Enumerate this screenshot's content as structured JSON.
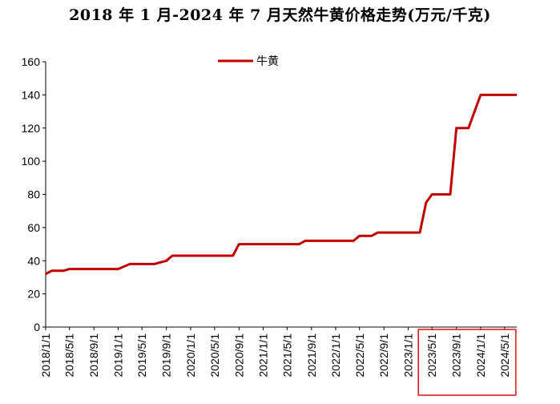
{
  "title": "2018 年 1 月-2024 年 7 月天然牛黄价格走势(万元/千克)",
  "chart_data": {
    "type": "line",
    "title": "2018 年 1 月-2024 年 7 月天然牛黄价格走势(万元/千克)",
    "xlabel": "",
    "ylabel": "",
    "ylim": [
      0,
      160
    ],
    "yticks": [
      0,
      20,
      40,
      60,
      80,
      100,
      120,
      140,
      160
    ],
    "xticks": [
      "2018/1/1",
      "2018/5/1",
      "2018/9/1",
      "2019/1/1",
      "2019/5/1",
      "2019/9/1",
      "2020/1/1",
      "2020/5/1",
      "2020/9/1",
      "2021/1/1",
      "2021/5/1",
      "2021/9/1",
      "2022/1/1",
      "2022/5/1",
      "2022/9/1",
      "2023/1/1",
      "2023/5/1",
      "2023/9/1",
      "2024/1/1",
      "2024/5/1"
    ],
    "grid": false,
    "legend": "top-center",
    "highlight": [
      "2023/5/1",
      "2024/5/1"
    ],
    "colors": {
      "series": "#c00000",
      "highlight": "#e02020"
    },
    "series": [
      {
        "name": "牛黄",
        "points": [
          [
            "2018-01-01",
            32
          ],
          [
            "2018-02-01",
            34
          ],
          [
            "2018-04-01",
            34
          ],
          [
            "2018-05-01",
            35
          ],
          [
            "2019-01-01",
            35
          ],
          [
            "2019-03-01",
            38
          ],
          [
            "2019-07-01",
            38
          ],
          [
            "2019-09-01",
            40
          ],
          [
            "2019-10-01",
            43
          ],
          [
            "2020-08-01",
            43
          ],
          [
            "2020-09-01",
            50
          ],
          [
            "2021-07-01",
            50
          ],
          [
            "2021-08-01",
            52
          ],
          [
            "2022-04-01",
            52
          ],
          [
            "2022-05-01",
            55
          ],
          [
            "2022-07-01",
            55
          ],
          [
            "2022-08-01",
            57
          ],
          [
            "2023-03-01",
            57
          ],
          [
            "2023-04-01",
            75
          ],
          [
            "2023-05-01",
            80
          ],
          [
            "2023-08-01",
            80
          ],
          [
            "2023-09-01",
            120
          ],
          [
            "2023-11-01",
            120
          ],
          [
            "2024-01-01",
            140
          ],
          [
            "2024-07-01",
            140
          ]
        ]
      }
    ]
  }
}
